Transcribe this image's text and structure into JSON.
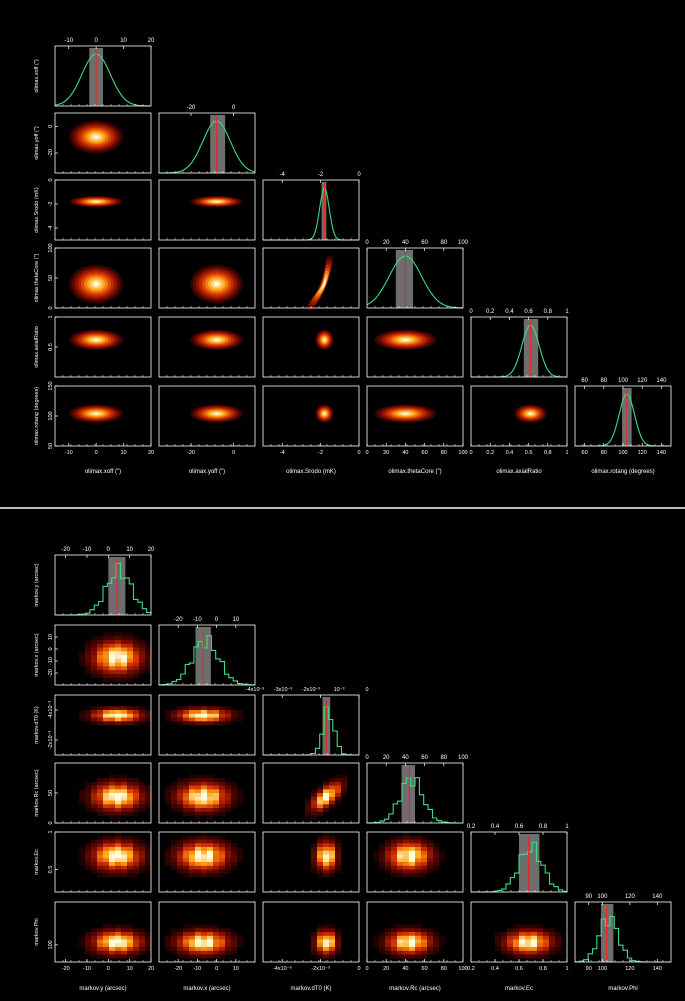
{
  "colors": {
    "background": "#000000",
    "frame": "#ffffff",
    "histogram": "#3ddc84",
    "credible_band": "#6e6e6e",
    "median_line": "#e8271c",
    "density_low": "#3a0500",
    "density_high": "#fffbe0",
    "separator": "#bbbbbb"
  },
  "chart_data": [
    {
      "type": "heatmap",
      "style": "smooth",
      "variables": [
        {
          "label": "olimax.xoff (\")",
          "range": [
            -15,
            20
          ],
          "ticks": [
            -10,
            0,
            10,
            20
          ],
          "center": 0,
          "sigma": 5.2,
          "band": [
            -2.5,
            2.5
          ]
        },
        {
          "label": "olimax.yoff (\")",
          "range": [
            -35,
            10
          ],
          "ticks": [
            -20,
            0
          ],
          "center": -8,
          "sigma": 6.5,
          "band": [
            -11,
            -4
          ]
        },
        {
          "label": "olimax.Srodo (mK)",
          "range": [
            -5,
            0
          ],
          "ticks": [
            -4,
            -2,
            0
          ],
          "center": -1.8,
          "sigma": 0.25,
          "band": [
            -1.95,
            -1.7
          ]
        },
        {
          "label": "olimax.thetaCore (\")",
          "range": [
            0,
            100
          ],
          "ticks": [
            0,
            20,
            40,
            60,
            80,
            100
          ],
          "center": 40,
          "sigma": 17,
          "band": [
            30,
            48
          ]
        },
        {
          "label": "olimax.axialRatio",
          "range": [
            0,
            1
          ],
          "ticks": [
            0,
            0.2,
            0.4,
            0.6,
            0.8,
            1
          ],
          "center": 0.62,
          "sigma": 0.09,
          "band": [
            0.55,
            0.7
          ]
        },
        {
          "label": "olimax.rotang (degrees)",
          "range": [
            50,
            150
          ],
          "ticks": [
            60,
            80,
            100,
            120,
            140
          ],
          "center": 104,
          "sigma": 8,
          "band": [
            99,
            109
          ]
        }
      ],
      "left_axis_ticks": [
        [],
        [
          -20,
          0
        ],
        [
          -4,
          -2,
          0
        ],
        [
          0,
          50,
          100
        ],
        [
          0.5,
          1
        ],
        [
          50,
          100,
          150
        ]
      ]
    },
    {
      "type": "heatmap",
      "style": "binned",
      "variables": [
        {
          "label": "markov.y (arcsec)",
          "range": [
            -25,
            20
          ],
          "ticks": [
            -20,
            -10,
            0,
            10,
            20
          ],
          "center": 4,
          "sigma": 6,
          "band": [
            0,
            8
          ]
        },
        {
          "label": "markov.x (arcsec)",
          "range": [
            -30,
            20
          ],
          "ticks": [
            -20,
            -10,
            0,
            10
          ],
          "center": -7,
          "sigma": 7,
          "band": [
            -11,
            -3
          ]
        },
        {
          "label": "markov.dT0 (K)",
          "range": [
            -0.005,
            0
          ],
          "ticks": [
            -0.004,
            -0.002,
            0
          ],
          "tick_labels": [
            "-4x10⁻³",
            "-2x10⁻³",
            "0"
          ],
          "extra_top_labels": [
            "-4x10⁻³",
            "-3x10⁻³",
            "-2x10⁻³",
            "10⁻³",
            "0"
          ],
          "center": -0.0017,
          "sigma": 0.0003,
          "band": [
            -0.0019,
            -0.0015
          ]
        },
        {
          "label": "markov.Rc (arcsec)",
          "range": [
            0,
            100
          ],
          "ticks": [
            0,
            20,
            40,
            60,
            80,
            100
          ],
          "center": 44,
          "sigma": 12,
          "band": [
            36,
            50
          ]
        },
        {
          "label": "markov.Ec",
          "range": [
            0.2,
            1
          ],
          "ticks": [
            0.2,
            0.4,
            0.6,
            0.8,
            1
          ],
          "center": 0.68,
          "sigma": 0.1,
          "band": [
            0.6,
            0.77
          ]
        },
        {
          "label": "markov.Phi",
          "range": [
            80,
            150
          ],
          "ticks": [
            90,
            100,
            120,
            140
          ],
          "center": 103,
          "sigma": 7,
          "band": [
            99,
            108
          ]
        }
      ],
      "left_axis_ticks": [
        [],
        [
          -20,
          -10,
          0,
          10
        ],
        [
          "-4x10⁻³",
          "-2x10⁻³"
        ],
        [
          0,
          50
        ],
        [
          0.5,
          1
        ],
        [
          50,
          100
        ]
      ]
    }
  ]
}
